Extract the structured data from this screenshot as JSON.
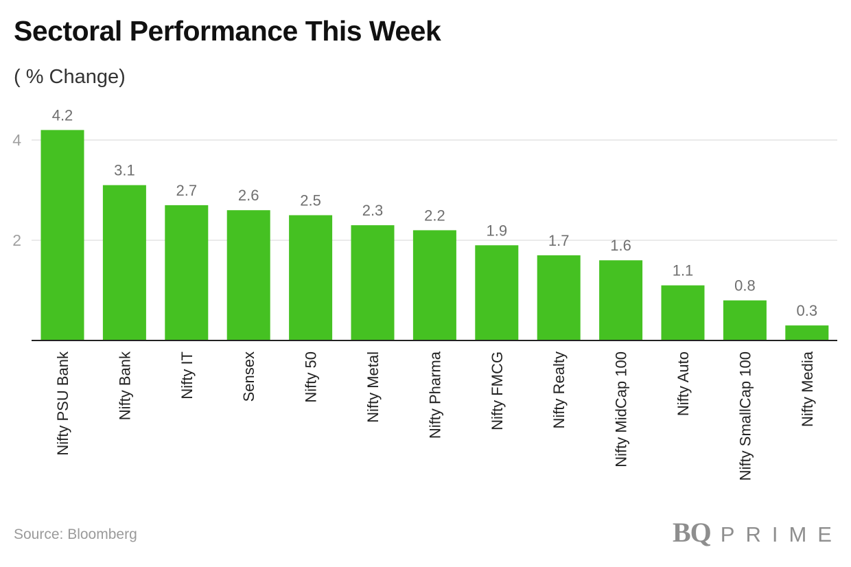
{
  "chart_data": {
    "type": "bar",
    "title": "Sectoral Performance This Week",
    "subtitle": "( % Change)",
    "categories": [
      "Nifty PSU Bank",
      "Nifty Bank",
      "Nifty IT",
      "Sensex",
      "Nifty 50",
      "Nifty Metal",
      "Nifty Pharma",
      "Nifty FMCG",
      "Nifty Realty",
      "Nifty MidCap 100",
      "Nifty Auto",
      "Nifty SmallCap 100",
      "Nifty Media"
    ],
    "values": [
      4.2,
      3.1,
      2.7,
      2.6,
      2.5,
      2.3,
      2.2,
      1.9,
      1.7,
      1.6,
      1.1,
      0.8,
      0.3
    ],
    "value_labels": [
      "4.2",
      "3.1",
      "2.7",
      "2.6",
      "2.5",
      "2.3",
      "2.2",
      "1.9",
      "1.7",
      "1.6",
      "1.1",
      "0.8",
      "0.3"
    ],
    "yticks": [
      2,
      4
    ],
    "ytick_labels": [
      "2",
      "4"
    ],
    "ylim": [
      0,
      4.6
    ],
    "grid": true,
    "xlabel": "",
    "ylabel": "",
    "bar_color": "#45c122",
    "source": "Source: Bloomberg"
  },
  "brand": {
    "logo_mark": "BQ",
    "logo_word": "PRIME"
  }
}
